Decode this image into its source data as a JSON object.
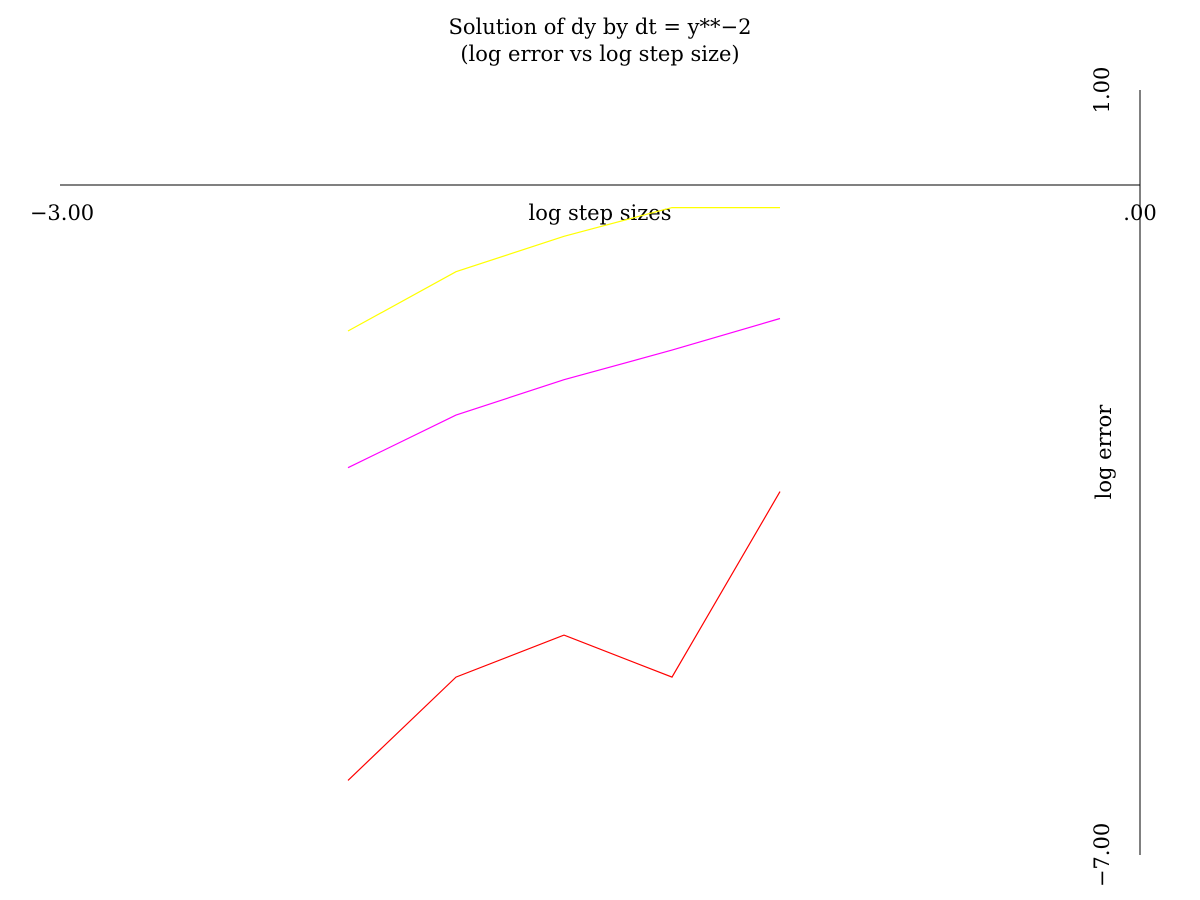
{
  "chart_data": {
    "type": "line",
    "title": "Solution of dy by dt = y**−2",
    "subtitle": "(log error vs log step size)",
    "xlabel": "log step sizes",
    "ylabel": "log error",
    "xlim": [
      -3.0,
      0.0
    ],
    "ylim": [
      -7.0,
      1.0
    ],
    "x_tick_labels": [
      "−3.00",
      ".00"
    ],
    "y_tick_labels": [
      "1.00",
      "−7.00"
    ],
    "grid": false,
    "series": [
      {
        "color": "#ffff00",
        "x": [
          -2.2,
          -1.9,
          -1.6,
          -1.3,
          -1.0
        ],
        "y": [
          -1.52,
          -0.9,
          -0.53,
          -0.23,
          -0.23
        ]
      },
      {
        "color": "#ff00ff",
        "x": [
          -2.2,
          -1.9,
          -1.6,
          -1.3,
          -1.0
        ],
        "y": [
          -2.95,
          -2.4,
          -2.03,
          -1.72,
          -1.39
        ]
      },
      {
        "color": "#ff0000",
        "x": [
          -2.2,
          -1.9,
          -1.6,
          -1.3,
          -1.0
        ],
        "y": [
          -6.22,
          -5.14,
          -4.7,
          -5.14,
          -3.2
        ]
      }
    ]
  }
}
